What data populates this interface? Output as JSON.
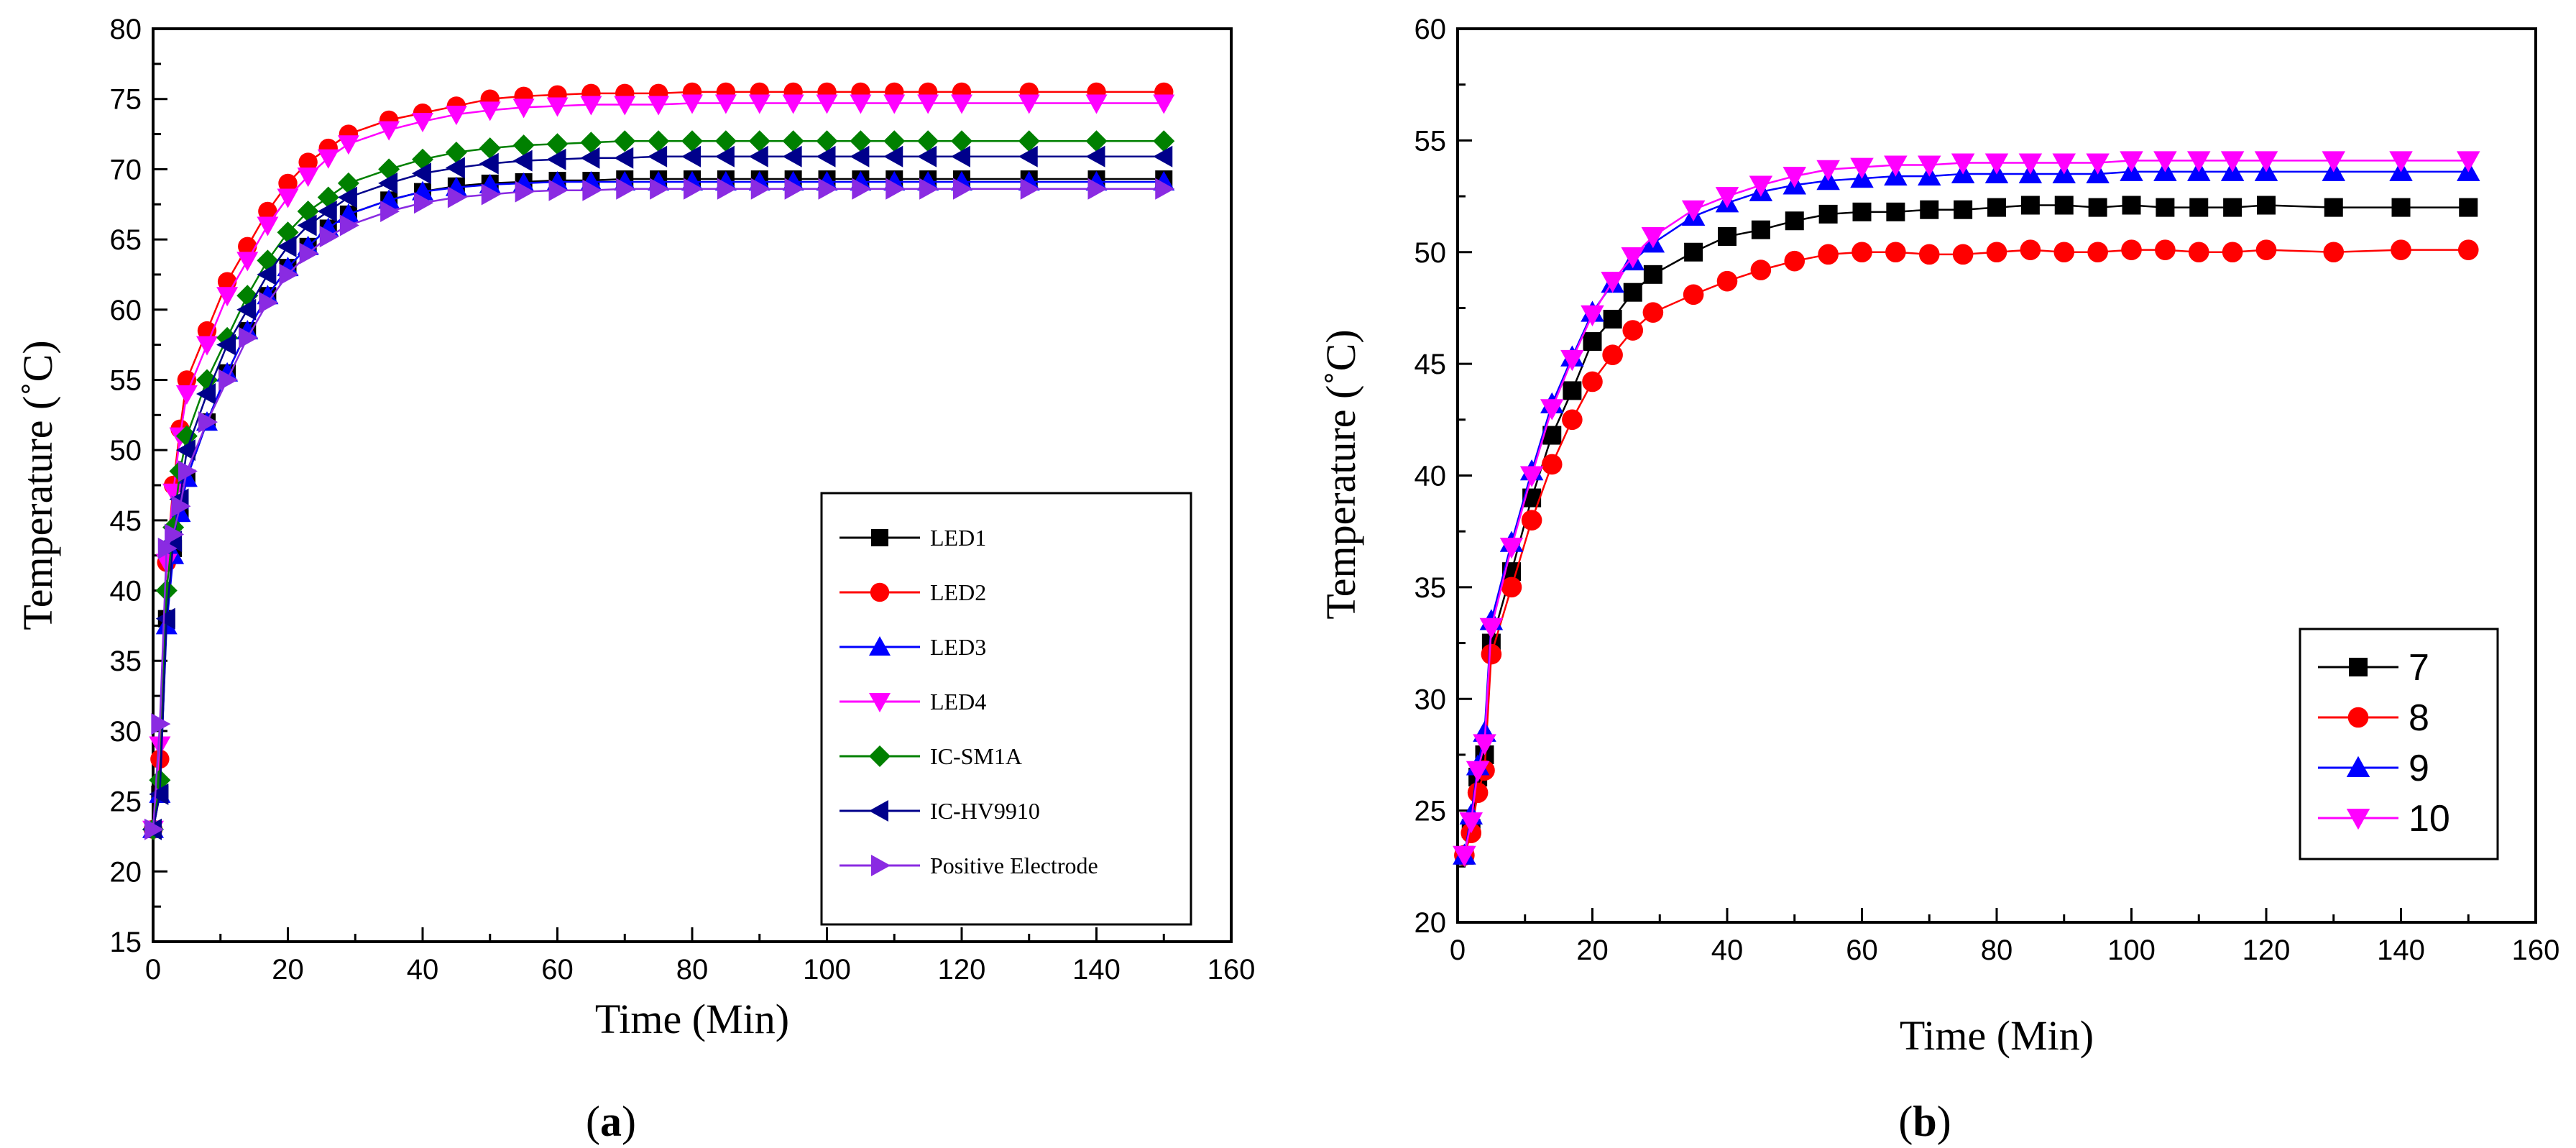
{
  "figure": {
    "caption_a": "a",
    "caption_b": "b"
  },
  "chart_data": [
    {
      "id": "a",
      "type": "line",
      "xlabel": "Time (Min)",
      "ylabel": "Temperature (˚C)",
      "xlim": [
        0,
        160
      ],
      "ylim": [
        15,
        80
      ],
      "xticks": [
        0,
        20,
        40,
        60,
        80,
        100,
        120,
        140,
        160
      ],
      "yticks": [
        15,
        20,
        25,
        30,
        35,
        40,
        45,
        50,
        55,
        60,
        65,
        70,
        75,
        80
      ],
      "legend_position": "lower-right",
      "x": [
        0,
        1,
        2,
        3,
        4,
        5,
        8,
        11,
        14,
        17,
        20,
        23,
        26,
        29,
        35,
        40,
        45,
        50,
        55,
        60,
        65,
        70,
        75,
        80,
        85,
        90,
        95,
        100,
        105,
        110,
        115,
        120,
        130,
        140,
        150
      ],
      "series": [
        {
          "name": "LED1",
          "color": "#000000",
          "marker": "square",
          "values": [
            23,
            25.5,
            38,
            43,
            45.5,
            48,
            52,
            55.5,
            58.5,
            61,
            63,
            64.5,
            65.8,
            66.8,
            67.8,
            68.4,
            68.8,
            69,
            69.1,
            69.2,
            69.2,
            69.3,
            69.3,
            69.3,
            69.3,
            69.3,
            69.3,
            69.3,
            69.3,
            69.3,
            69.3,
            69.3,
            69.3,
            69.3,
            69.3
          ]
        },
        {
          "name": "LED2",
          "color": "#ff0000",
          "marker": "circle",
          "values": [
            23,
            28,
            42,
            47.5,
            51.5,
            55,
            58.5,
            62,
            64.5,
            67,
            69,
            70.5,
            71.5,
            72.5,
            73.5,
            74,
            74.5,
            75,
            75.2,
            75.3,
            75.4,
            75.4,
            75.4,
            75.5,
            75.5,
            75.5,
            75.5,
            75.5,
            75.5,
            75.5,
            75.5,
            75.5,
            75.5,
            75.5,
            75.5
          ]
        },
        {
          "name": "LED3",
          "color": "#0000ff",
          "marker": "triangle-up",
          "values": [
            23,
            25.5,
            37.5,
            42.5,
            45.5,
            48,
            52,
            55.5,
            58.5,
            61,
            63,
            64.5,
            65.8,
            66.8,
            67.8,
            68.4,
            68.7,
            68.9,
            69,
            69.1,
            69.1,
            69.1,
            69.1,
            69.1,
            69.1,
            69.1,
            69.1,
            69.1,
            69.1,
            69.1,
            69.1,
            69.1,
            69.1,
            69.1,
            69.1
          ]
        },
        {
          "name": "LED4",
          "color": "#ff00ff",
          "marker": "triangle-down",
          "values": [
            23,
            29,
            42,
            47,
            51,
            54,
            57.5,
            61,
            63.5,
            66,
            68,
            69.5,
            70.8,
            71.8,
            72.8,
            73.4,
            73.9,
            74.2,
            74.4,
            74.5,
            74.6,
            74.6,
            74.6,
            74.7,
            74.7,
            74.7,
            74.7,
            74.7,
            74.7,
            74.7,
            74.7,
            74.7,
            74.7,
            74.7,
            74.7
          ]
        },
        {
          "name": "IC-SM1A",
          "color": "#008000",
          "marker": "diamond",
          "values": [
            23,
            26.5,
            40,
            44.5,
            48.5,
            51,
            55,
            58,
            61,
            63.5,
            65.5,
            67,
            68,
            69,
            70,
            70.7,
            71.2,
            71.5,
            71.7,
            71.8,
            71.9,
            72,
            72,
            72,
            72,
            72,
            72,
            72,
            72,
            72,
            72,
            72,
            72,
            72,
            72
          ]
        },
        {
          "name": "IC-HV9910",
          "color": "#00008b",
          "marker": "triangle-left",
          "values": [
            23,
            25.5,
            38,
            43.5,
            46.5,
            50,
            54,
            57.5,
            60,
            62.5,
            64.5,
            66,
            67,
            68,
            69,
            69.7,
            70.1,
            70.4,
            70.6,
            70.7,
            70.8,
            70.8,
            70.9,
            70.9,
            70.9,
            70.9,
            70.9,
            70.9,
            70.9,
            70.9,
            70.9,
            70.9,
            70.9,
            70.9,
            70.9
          ]
        },
        {
          "name": "Positive Electrode",
          "color": "#8a2be2",
          "marker": "triangle-right",
          "values": [
            23,
            30.5,
            43,
            44,
            46,
            48.5,
            52,
            55,
            58,
            60.5,
            62.5,
            64,
            65.2,
            66,
            67,
            67.6,
            68,
            68.2,
            68.4,
            68.5,
            68.5,
            68.6,
            68.6,
            68.6,
            68.6,
            68.6,
            68.6,
            68.6,
            68.6,
            68.6,
            68.6,
            68.6,
            68.6,
            68.6,
            68.6
          ]
        }
      ]
    },
    {
      "id": "b",
      "type": "line",
      "xlabel": "Time (Min)",
      "ylabel": "Temperature (˚C)",
      "xlim": [
        0,
        160
      ],
      "ylim": [
        20,
        60
      ],
      "xticks": [
        0,
        20,
        40,
        60,
        80,
        100,
        120,
        140,
        160
      ],
      "yticks": [
        20,
        25,
        30,
        35,
        40,
        45,
        50,
        55,
        60
      ],
      "legend_position": "lower-right",
      "x": [
        1,
        2,
        3,
        4,
        5,
        8,
        11,
        14,
        17,
        20,
        23,
        26,
        29,
        35,
        40,
        45,
        50,
        55,
        60,
        65,
        70,
        75,
        80,
        85,
        90,
        95,
        100,
        105,
        110,
        115,
        120,
        130,
        140,
        150
      ],
      "series": [
        {
          "name": "7",
          "color": "#000000",
          "marker": "square",
          "values": [
            23,
            24.2,
            26.5,
            27.5,
            32.5,
            35.7,
            39,
            41.8,
            43.8,
            46,
            47,
            48.2,
            49,
            50,
            50.7,
            51,
            51.4,
            51.7,
            51.8,
            51.8,
            51.9,
            51.9,
            52,
            52.1,
            52.1,
            52,
            52.1,
            52,
            52,
            52,
            52.1,
            52,
            52,
            52
          ]
        },
        {
          "name": "8",
          "color": "#ff0000",
          "marker": "circle",
          "values": [
            23,
            24,
            25.8,
            26.8,
            32,
            35,
            38,
            40.5,
            42.5,
            44.2,
            45.4,
            46.5,
            47.3,
            48.1,
            48.7,
            49.2,
            49.6,
            49.9,
            50,
            50,
            49.9,
            49.9,
            50,
            50.1,
            50,
            50,
            50.1,
            50.1,
            50,
            50,
            50.1,
            50,
            50.1,
            50.1
          ]
        },
        {
          "name": "9",
          "color": "#0000ff",
          "marker": "triangle-up",
          "values": [
            23,
            24.8,
            27,
            28.5,
            33.5,
            37,
            40.2,
            43.2,
            45.3,
            47.3,
            48.6,
            49.6,
            50.4,
            51.6,
            52.2,
            52.7,
            53,
            53.2,
            53.3,
            53.4,
            53.4,
            53.5,
            53.5,
            53.5,
            53.5,
            53.5,
            53.6,
            53.6,
            53.6,
            53.6,
            53.6,
            53.6,
            53.6,
            53.6
          ]
        },
        {
          "name": "10",
          "color": "#ff00ff",
          "marker": "triangle-down",
          "values": [
            23,
            24.5,
            26.8,
            28,
            33.2,
            36.8,
            40,
            43,
            45.2,
            47.2,
            48.7,
            49.8,
            50.7,
            51.9,
            52.5,
            53,
            53.4,
            53.7,
            53.8,
            53.9,
            53.9,
            54,
            54,
            54,
            54,
            54,
            54.1,
            54.1,
            54.1,
            54.1,
            54.1,
            54.1,
            54.1,
            54.1
          ]
        }
      ]
    }
  ]
}
